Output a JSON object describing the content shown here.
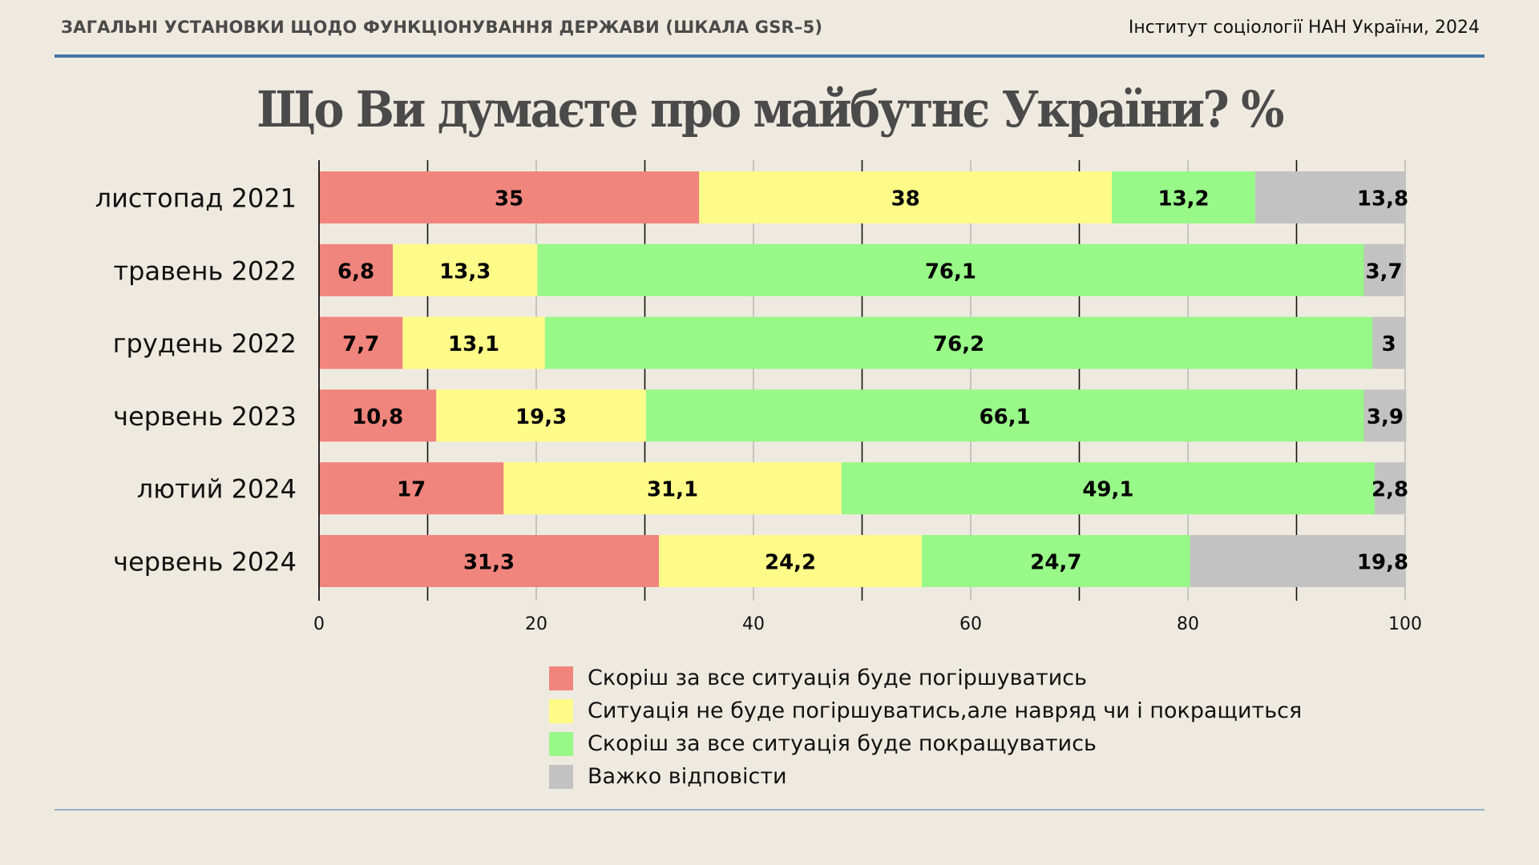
{
  "header": {
    "subtitle_left": "ЗАГАЛЬНІ УСТАНОВКИ ЩОДО ФУНКЦІОНУВАННЯ ДЕРЖАВИ (ШКАЛА GSR–5)",
    "source_right": "Інститут соціології НАН України, 2024"
  },
  "colors": {
    "background": "#EFEAE0",
    "rule_top": "#4377A8",
    "rule_bottom": "#93AFC8",
    "worse": "#F0857D",
    "same": "#FFFB88",
    "better": "#98F888",
    "hard": "#C2C2C2"
  },
  "chart_data": {
    "type": "bar",
    "orientation": "horizontal",
    "stacked": true,
    "title": "Що Ви думаєте про майбутнє України? %",
    "xlabel": "",
    "ylabel": "",
    "xlim": [
      0,
      100
    ],
    "xticks": [
      0,
      20,
      40,
      60,
      80,
      100
    ],
    "grid": true,
    "legend_position": "bottom",
    "categories": [
      "листопад 2021",
      "травень 2022",
      "грудень 2022",
      "червень 2023",
      "лютий 2024",
      "червень 2024"
    ],
    "series": [
      {
        "name": "Скоріш за все ситуація буде погіршуватись",
        "color": "#F0857D",
        "values": [
          35,
          6.8,
          7.7,
          10.8,
          17,
          31.3
        ],
        "labels": [
          "35",
          "6,8",
          "7,7",
          "10,8",
          "17",
          "31,3"
        ]
      },
      {
        "name": "Ситуація не буде погіршуватись,але навряд чи і покращиться",
        "color": "#FFFB88",
        "values": [
          38,
          13.3,
          13.1,
          19.3,
          31.1,
          24.2
        ],
        "labels": [
          "38",
          "13,3",
          "13,1",
          "19,3",
          "31,1",
          "24,2"
        ]
      },
      {
        "name": "Скоріш за все ситуація буде покращуватись",
        "color": "#98F888",
        "values": [
          13.2,
          76.1,
          76.2,
          66.1,
          49.1,
          24.7
        ],
        "labels": [
          "13,2",
          "76,1",
          "76,2",
          "66,1",
          "49,1",
          "24,7"
        ]
      },
      {
        "name": "Важко відповісти",
        "color": "#C2C2C2",
        "values": [
          13.8,
          3.7,
          3,
          3.9,
          2.8,
          19.8
        ],
        "labels": [
          "13,8",
          "3,7",
          "3",
          "3,9",
          "2,8",
          "19,8"
        ]
      }
    ]
  }
}
